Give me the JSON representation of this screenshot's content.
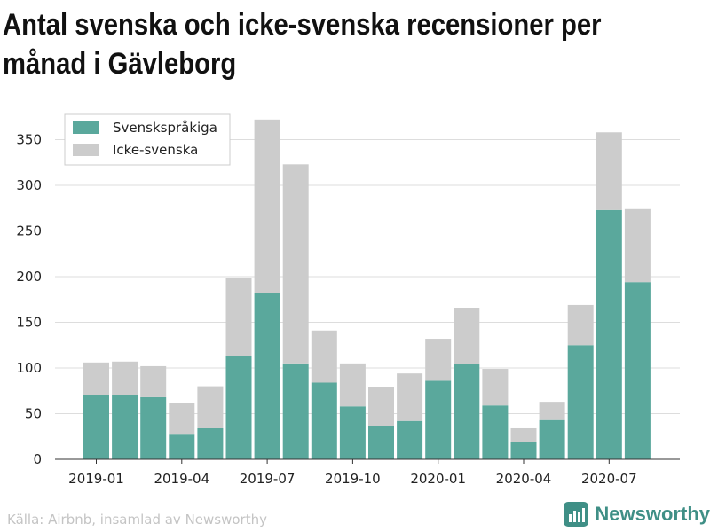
{
  "title": "Antal svenska och icke-svenska recensioner per månad i Gävleborg",
  "source": "Källa: Airbnb, insamlad av Newsworthy",
  "brand": {
    "name": "Newsworthy",
    "icon": "newsworthy-logo-icon"
  },
  "colors": {
    "swedish": "#5aa89c",
    "non_swedish": "#cccccc",
    "grid": "#dddddd",
    "brand": "#3f8f86"
  },
  "chart_data": {
    "type": "bar",
    "stacked": true,
    "title": "Antal svenska och icke-svenska recensioner per månad i Gävleborg",
    "categories": [
      "2019-01",
      "2019-02",
      "2019-03",
      "2019-04",
      "2019-05",
      "2019-06",
      "2019-07",
      "2019-08",
      "2019-09",
      "2019-10",
      "2019-11",
      "2019-12",
      "2020-01",
      "2020-02",
      "2020-03",
      "2020-04",
      "2020-05",
      "2020-06",
      "2020-07",
      "2020-08"
    ],
    "x_tick_labels": [
      "2019-01",
      "2019-04",
      "2019-07",
      "2019-10",
      "2020-01",
      "2020-04",
      "2020-07"
    ],
    "series": [
      {
        "name": "Svenskspråkiga",
        "values": [
          70,
          70,
          68,
          27,
          34,
          113,
          182,
          105,
          84,
          58,
          36,
          42,
          86,
          104,
          59,
          19,
          43,
          125,
          273,
          194
        ]
      },
      {
        "name": "Icke-svenska",
        "values": [
          36,
          37,
          34,
          35,
          46,
          86,
          190,
          218,
          57,
          47,
          43,
          52,
          46,
          62,
          40,
          15,
          20,
          44,
          85,
          80
        ]
      }
    ],
    "y_ticks": [
      0,
      50,
      100,
      150,
      200,
      250,
      300,
      350
    ],
    "ylim": [
      0,
      370
    ],
    "grid": true,
    "legend_position": "top-left"
  }
}
